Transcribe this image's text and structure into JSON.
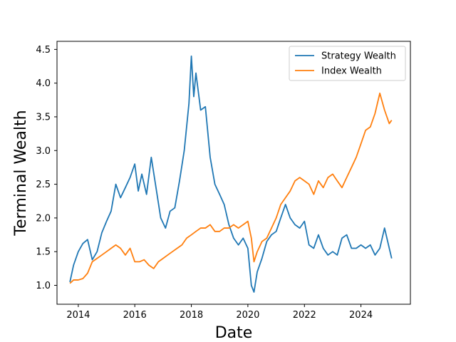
{
  "chart_data": {
    "type": "line",
    "title": "",
    "xlabel": "Date",
    "ylabel": "Terminal Wealth",
    "xlim": [
      "2013-04-01",
      "2025-10-01"
    ],
    "ylim": [
      0.72,
      4.62
    ],
    "x_ticks": [
      "2014-01-01",
      "2016-01-01",
      "2018-01-01",
      "2020-01-01",
      "2022-01-01",
      "2024-01-01"
    ],
    "x_tick_labels": [
      "2014",
      "2016",
      "2018",
      "2020",
      "2022",
      "2024"
    ],
    "y_ticks": [
      1.0,
      1.5,
      2.0,
      2.5,
      3.0,
      3.5,
      4.0,
      4.5
    ],
    "y_tick_labels": [
      "1.0",
      "1.5",
      "2.0",
      "2.5",
      "3.0",
      "3.5",
      "4.0",
      "4.5"
    ],
    "grid": false,
    "legend_position": "top-right",
    "series": [
      {
        "name": "Strategy Wealth",
        "color": "#1f77b4",
        "points": [
          [
            "2013-09-15",
            1.05
          ],
          [
            "2013-11-01",
            1.3
          ],
          [
            "2014-01-01",
            1.5
          ],
          [
            "2014-03-01",
            1.62
          ],
          [
            "2014-05-01",
            1.68
          ],
          [
            "2014-07-01",
            1.38
          ],
          [
            "2014-09-01",
            1.5
          ],
          [
            "2014-11-01",
            1.78
          ],
          [
            "2015-01-01",
            1.95
          ],
          [
            "2015-03-01",
            2.1
          ],
          [
            "2015-05-01",
            2.5
          ],
          [
            "2015-07-01",
            2.3
          ],
          [
            "2015-09-01",
            2.45
          ],
          [
            "2015-11-01",
            2.6
          ],
          [
            "2016-01-01",
            2.8
          ],
          [
            "2016-02-15",
            2.4
          ],
          [
            "2016-04-01",
            2.65
          ],
          [
            "2016-06-01",
            2.35
          ],
          [
            "2016-08-01",
            2.9
          ],
          [
            "2016-10-01",
            2.45
          ],
          [
            "2016-12-01",
            2.0
          ],
          [
            "2017-02-01",
            1.85
          ],
          [
            "2017-04-01",
            2.1
          ],
          [
            "2017-06-01",
            2.15
          ],
          [
            "2017-08-01",
            2.55
          ],
          [
            "2017-10-01",
            3.0
          ],
          [
            "2017-12-01",
            3.7
          ],
          [
            "2018-01-01",
            4.4
          ],
          [
            "2018-02-01",
            3.8
          ],
          [
            "2018-03-01",
            4.15
          ],
          [
            "2018-05-01",
            3.6
          ],
          [
            "2018-07-01",
            3.65
          ],
          [
            "2018-09-01",
            2.9
          ],
          [
            "2018-11-01",
            2.5
          ],
          [
            "2019-01-01",
            2.35
          ],
          [
            "2019-03-01",
            2.2
          ],
          [
            "2019-05-01",
            1.9
          ],
          [
            "2019-07-01",
            1.7
          ],
          [
            "2019-09-01",
            1.6
          ],
          [
            "2019-11-01",
            1.7
          ],
          [
            "2020-01-01",
            1.55
          ],
          [
            "2020-02-15",
            1.0
          ],
          [
            "2020-03-20",
            0.9
          ],
          [
            "2020-05-01",
            1.2
          ],
          [
            "2020-07-01",
            1.4
          ],
          [
            "2020-09-01",
            1.65
          ],
          [
            "2020-11-01",
            1.75
          ],
          [
            "2021-01-01",
            1.8
          ],
          [
            "2021-03-01",
            2.0
          ],
          [
            "2021-05-01",
            2.2
          ],
          [
            "2021-07-01",
            2.0
          ],
          [
            "2021-09-01",
            1.9
          ],
          [
            "2021-11-01",
            1.85
          ],
          [
            "2022-01-01",
            1.95
          ],
          [
            "2022-03-01",
            1.6
          ],
          [
            "2022-05-01",
            1.55
          ],
          [
            "2022-07-01",
            1.75
          ],
          [
            "2022-09-01",
            1.55
          ],
          [
            "2022-11-01",
            1.45
          ],
          [
            "2023-01-01",
            1.5
          ],
          [
            "2023-03-01",
            1.45
          ],
          [
            "2023-05-01",
            1.7
          ],
          [
            "2023-07-01",
            1.75
          ],
          [
            "2023-09-01",
            1.55
          ],
          [
            "2023-11-01",
            1.55
          ],
          [
            "2024-01-01",
            1.6
          ],
          [
            "2024-03-01",
            1.55
          ],
          [
            "2024-05-01",
            1.6
          ],
          [
            "2024-07-01",
            1.45
          ],
          [
            "2024-09-01",
            1.55
          ],
          [
            "2024-11-01",
            1.85
          ],
          [
            "2025-01-01",
            1.55
          ],
          [
            "2025-02-01",
            1.4
          ]
        ]
      },
      {
        "name": "Index Wealth",
        "color": "#ff7f0e",
        "points": [
          [
            "2013-09-15",
            1.03
          ],
          [
            "2013-11-01",
            1.08
          ],
          [
            "2014-01-01",
            1.08
          ],
          [
            "2014-03-01",
            1.1
          ],
          [
            "2014-05-01",
            1.18
          ],
          [
            "2014-07-01",
            1.35
          ],
          [
            "2014-09-01",
            1.4
          ],
          [
            "2014-11-01",
            1.45
          ],
          [
            "2015-01-01",
            1.5
          ],
          [
            "2015-03-01",
            1.55
          ],
          [
            "2015-05-01",
            1.6
          ],
          [
            "2015-07-01",
            1.55
          ],
          [
            "2015-09-01",
            1.45
          ],
          [
            "2015-11-01",
            1.55
          ],
          [
            "2016-01-01",
            1.35
          ],
          [
            "2016-03-01",
            1.35
          ],
          [
            "2016-05-01",
            1.38
          ],
          [
            "2016-07-01",
            1.3
          ],
          [
            "2016-09-01",
            1.25
          ],
          [
            "2016-11-01",
            1.35
          ],
          [
            "2017-01-01",
            1.4
          ],
          [
            "2017-03-01",
            1.45
          ],
          [
            "2017-05-01",
            1.5
          ],
          [
            "2017-07-01",
            1.55
          ],
          [
            "2017-09-01",
            1.6
          ],
          [
            "2017-11-01",
            1.7
          ],
          [
            "2018-01-01",
            1.75
          ],
          [
            "2018-03-01",
            1.8
          ],
          [
            "2018-05-01",
            1.85
          ],
          [
            "2018-07-01",
            1.85
          ],
          [
            "2018-09-01",
            1.9
          ],
          [
            "2018-11-01",
            1.8
          ],
          [
            "2019-01-01",
            1.8
          ],
          [
            "2019-03-01",
            1.85
          ],
          [
            "2019-05-01",
            1.85
          ],
          [
            "2019-07-01",
            1.9
          ],
          [
            "2019-09-01",
            1.85
          ],
          [
            "2019-11-01",
            1.9
          ],
          [
            "2020-01-01",
            1.95
          ],
          [
            "2020-02-15",
            1.7
          ],
          [
            "2020-03-20",
            1.35
          ],
          [
            "2020-05-01",
            1.5
          ],
          [
            "2020-07-01",
            1.65
          ],
          [
            "2020-09-01",
            1.7
          ],
          [
            "2020-11-01",
            1.85
          ],
          [
            "2021-01-01",
            2.0
          ],
          [
            "2021-03-01",
            2.2
          ],
          [
            "2021-05-01",
            2.3
          ],
          [
            "2021-07-01",
            2.4
          ],
          [
            "2021-09-01",
            2.55
          ],
          [
            "2021-11-01",
            2.6
          ],
          [
            "2022-01-01",
            2.55
          ],
          [
            "2022-03-01",
            2.5
          ],
          [
            "2022-05-01",
            2.35
          ],
          [
            "2022-07-01",
            2.55
          ],
          [
            "2022-09-01",
            2.45
          ],
          [
            "2022-11-01",
            2.6
          ],
          [
            "2023-01-01",
            2.65
          ],
          [
            "2023-03-01",
            2.55
          ],
          [
            "2023-05-01",
            2.45
          ],
          [
            "2023-07-01",
            2.6
          ],
          [
            "2023-09-01",
            2.75
          ],
          [
            "2023-11-01",
            2.9
          ],
          [
            "2024-01-01",
            3.1
          ],
          [
            "2024-03-01",
            3.3
          ],
          [
            "2024-05-01",
            3.35
          ],
          [
            "2024-07-01",
            3.55
          ],
          [
            "2024-09-01",
            3.85
          ],
          [
            "2024-11-01",
            3.6
          ],
          [
            "2025-01-01",
            3.4
          ],
          [
            "2025-02-01",
            3.45
          ]
        ]
      }
    ]
  }
}
